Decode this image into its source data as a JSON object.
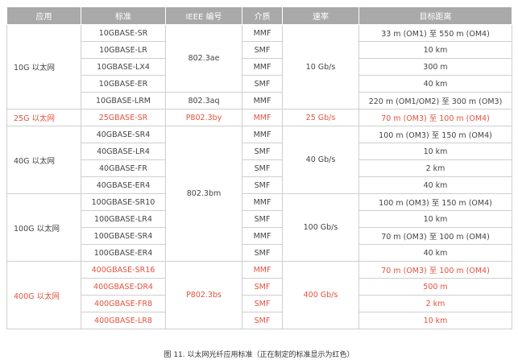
{
  "table": {
    "header": [
      "应用",
      "标准",
      "IEEE 编号",
      "介质",
      "速率",
      "目标距离"
    ],
    "highlight_color": "#e0533f",
    "rows": [
      {
        "application": "10G 以太网",
        "standard": "10GBASE-SR",
        "ieee": "802.3ae",
        "medium": "MMF",
        "rate": "10 Gb/s",
        "distance": "33 m (OM1) 至 550 m (OM4)"
      },
      {
        "standard": "10GBASE-LR",
        "medium": "SMF",
        "distance": "10 km"
      },
      {
        "standard": "10GBASE-LX4",
        "medium": "MMF",
        "distance": "300 m"
      },
      {
        "standard": "10GBASE-ER",
        "medium": "SMF",
        "distance": "40 km"
      },
      {
        "standard": "10GBASE-LRM",
        "ieee": "802.3aq",
        "medium": "MMF",
        "distance": "220 m (OM1/OM2) 至 300 m (OM3)"
      },
      {
        "application": "25G 以太网",
        "standard": "25GBASE-SR",
        "ieee": "P802.3by",
        "medium": "MMF",
        "rate": "25 Gb/s",
        "distance": "70 m (OM3) 至 100 m (OM4)",
        "highlight": true
      },
      {
        "application": "40G 以太网",
        "standard": "40GBASE-SR4",
        "ieee": "802.3bm",
        "medium": "MMF",
        "rate": "40 Gb/s",
        "distance": "100 m (OM3) 至 150 m (OM4)"
      },
      {
        "standard": "40GBASE-LR4",
        "medium": "SMF",
        "distance": "10 km"
      },
      {
        "standard": "40GBASE-FR",
        "medium": "SMF",
        "distance": "2 km"
      },
      {
        "standard": "40GBASE-ER4",
        "medium": "SMF",
        "distance": "40 km"
      },
      {
        "application": "100G 以太网",
        "standard": "100GBASE-SR10",
        "medium": "MMF",
        "rate": "100 Gb/s",
        "distance": "100 m (OM3) 至 150 m (OM4)"
      },
      {
        "standard": "100GBASE-LR4",
        "medium": "SMF",
        "distance": "10 km"
      },
      {
        "standard": "100GBASE-SR4",
        "medium": "MMF",
        "distance": "70 m (OM3) 至 100 m (OM4)"
      },
      {
        "standard": "100GBASE-ER4",
        "medium": "SMF",
        "distance": "40 km"
      },
      {
        "application": "400G 以太网",
        "standard": "400GBASE-SR16",
        "ieee": "P802.3bs",
        "medium": "MMF",
        "rate": "400 Gb/s",
        "distance": "70 m (OM3) 至 100 m (OM4)",
        "highlight": true
      },
      {
        "standard": "400GBASE-DR4",
        "medium": "SMF",
        "distance": "500 m",
        "highlight": true
      },
      {
        "standard": "400GBASE-FR8",
        "medium": "SMF",
        "distance": "2 km",
        "highlight": true
      },
      {
        "standard": "400GBASE-LR8",
        "medium": "SMF",
        "distance": "10 km",
        "highlight": true
      }
    ],
    "caption": "图 11. 以太网光纤应用标准（正在制定的标准显示为红色）"
  }
}
